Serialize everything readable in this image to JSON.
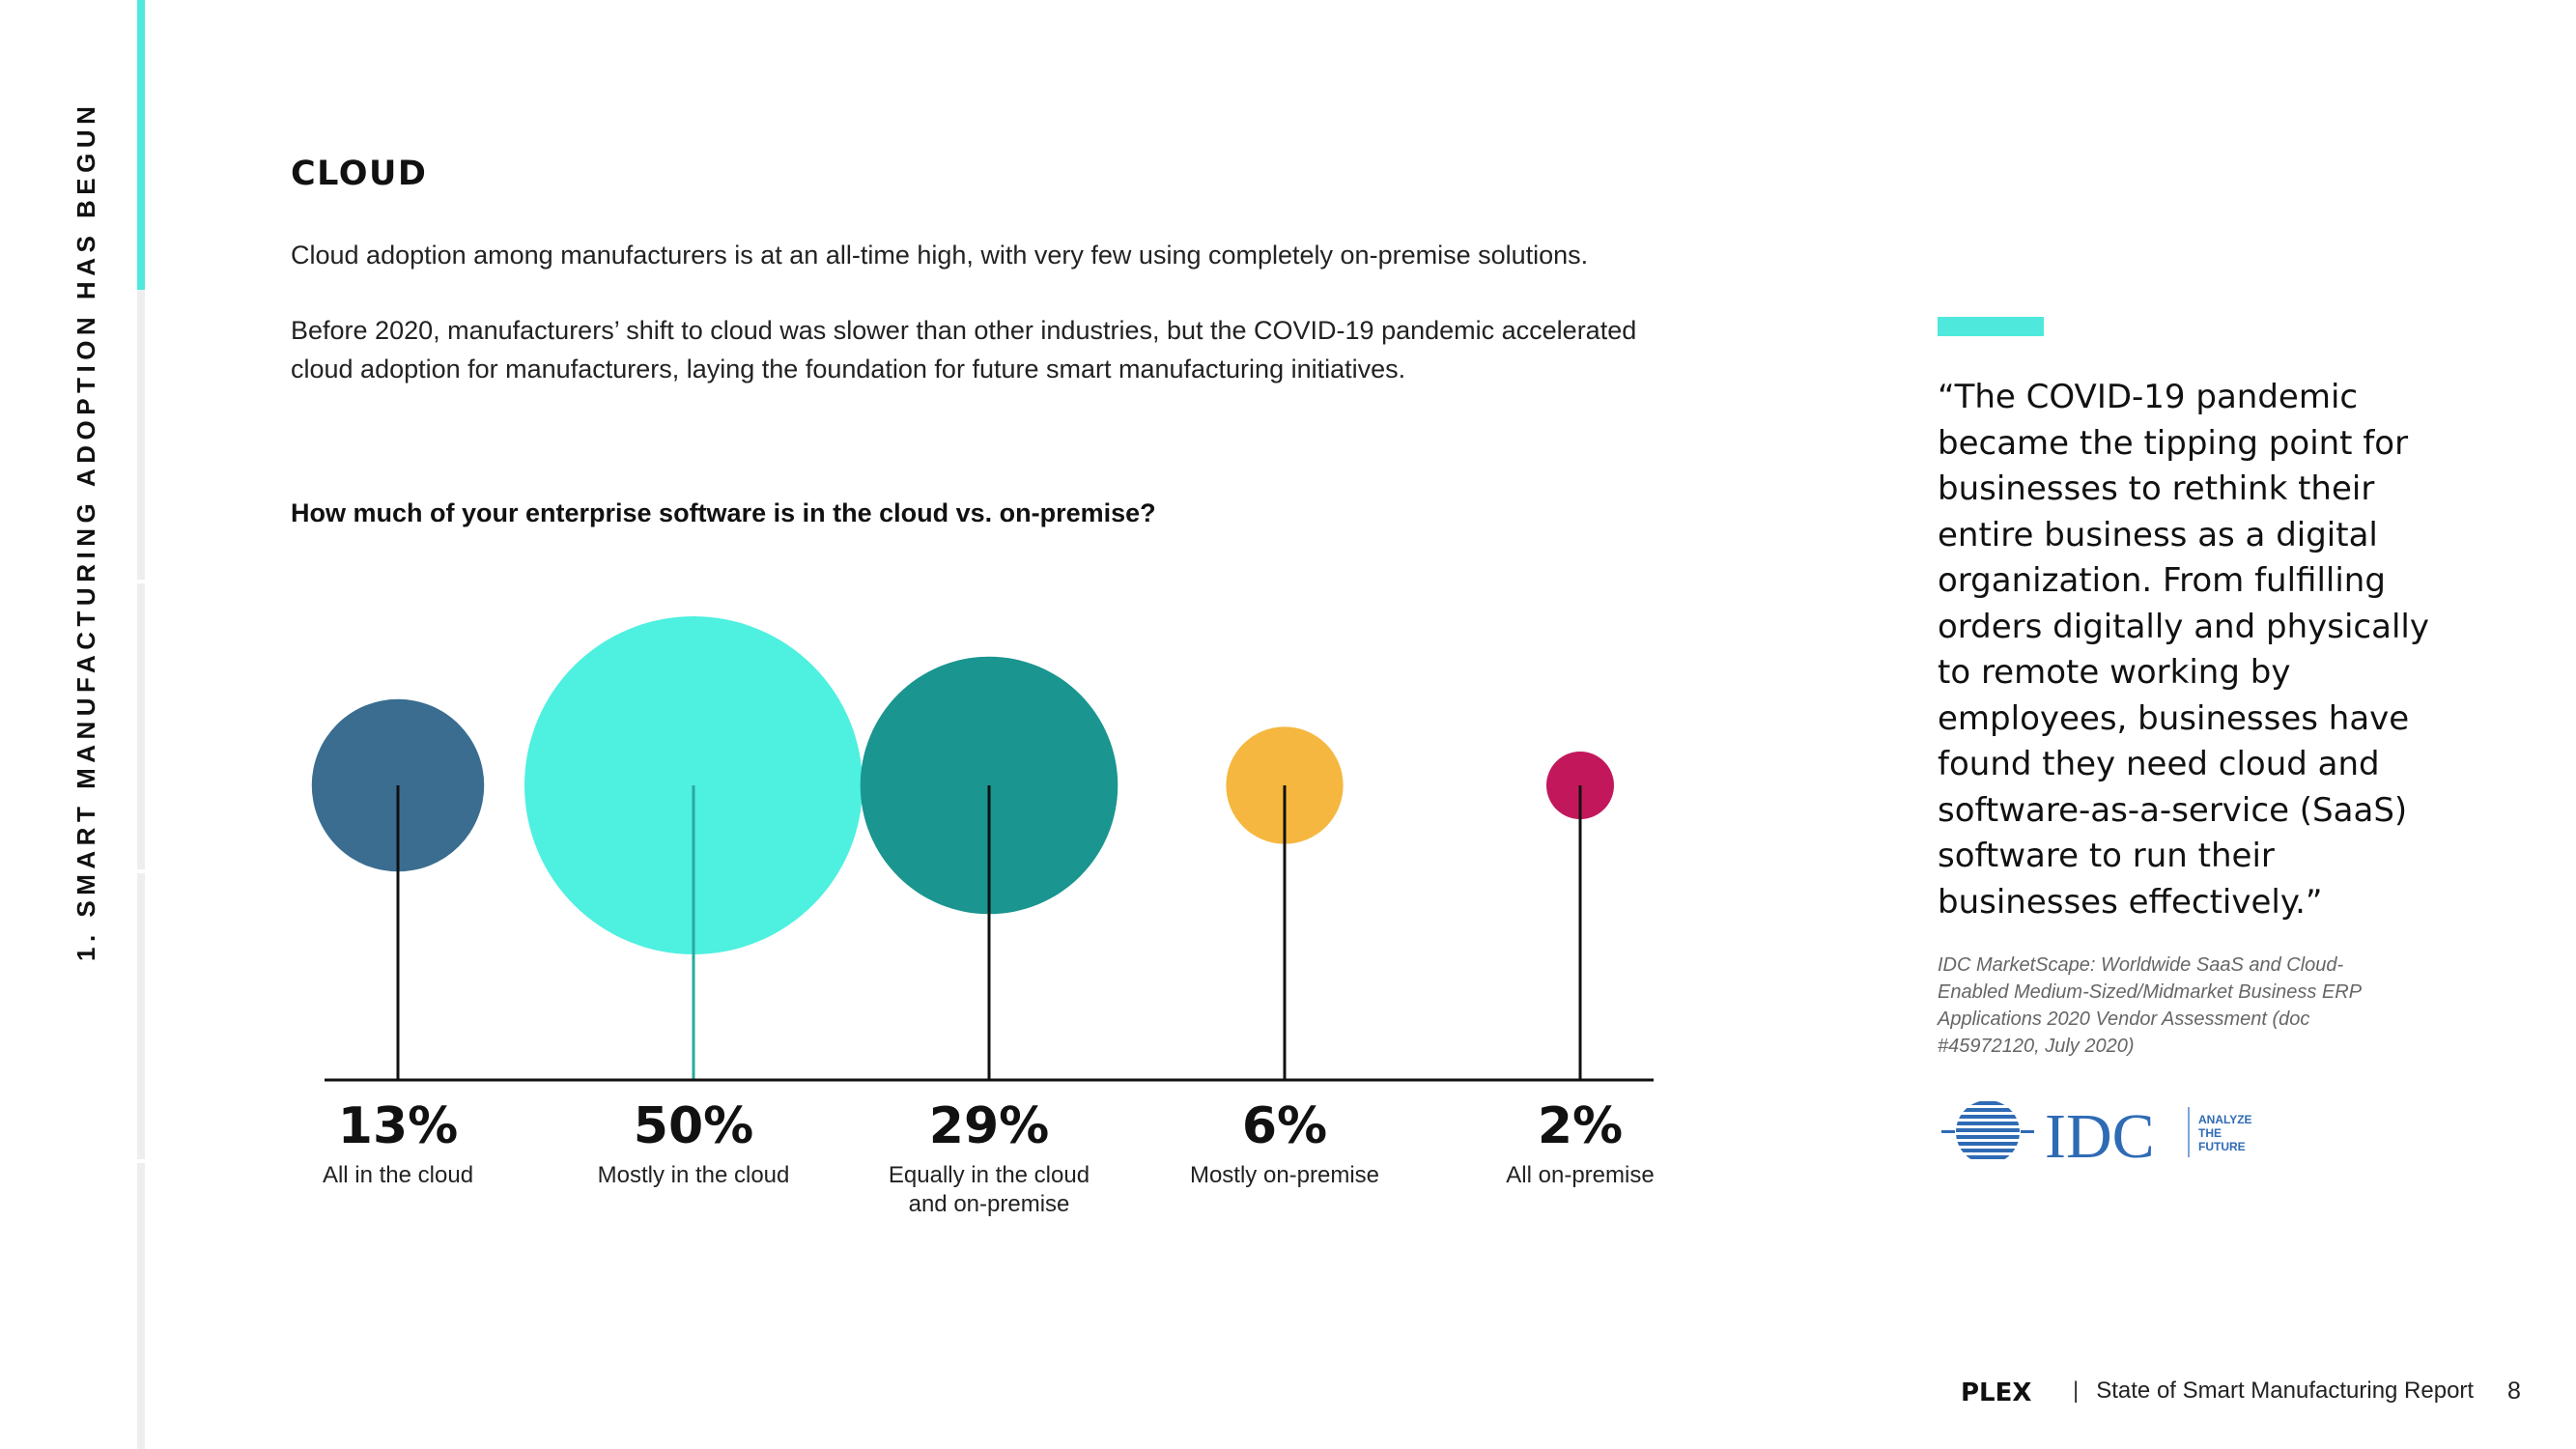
{
  "sidebar": {
    "vertical_title": "1. SMART MANUFACTURING ADOPTION HAS BEGUN"
  },
  "section": {
    "title": "CLOUD",
    "para1": "Cloud adoption among manufacturers is at an all-time high, with very few using completely on-premise solutions.",
    "para2": "Before 2020, manufacturers’ shift to cloud was slower than other industries, but the COVID-19 pandemic accelerated cloud adoption for manufacturers, laying the foundation for future smart manufacturing initiatives.",
    "question": "How much of your enterprise software is in the cloud vs. on-premise?"
  },
  "chart_data": {
    "type": "bubble",
    "title": "How much of your enterprise software is in the cloud vs. on-premise?",
    "categories": [
      "All in the cloud",
      "Mostly in the cloud",
      "Equally in the cloud and on-premise",
      "Mostly on-premise",
      "All on-premise"
    ],
    "category_lines": [
      [
        "All in the cloud"
      ],
      [
        "Mostly in the cloud"
      ],
      [
        "Equally in the cloud",
        "and on-premise"
      ],
      [
        "Mostly on-premise"
      ],
      [
        "All on-premise"
      ]
    ],
    "values": [
      13,
      50,
      29,
      6,
      2
    ],
    "labels": [
      "13%",
      "50%",
      "29%",
      "6%",
      "2%"
    ],
    "unit": "%",
    "colors": [
      "#3a6d90",
      "#4ef0e0",
      "#1a9590",
      "#f5b73f",
      "#c2185b"
    ]
  },
  "quote": {
    "text": "“The COVID-19 pandemic became the tipping point for businesses to rethink their entire business as a digital organization. From fulfilling orders digitally and physically to remote working by employees, businesses have found they need cloud and software-as-a-service (SaaS) software to run their businesses effectively.”",
    "source": "IDC MarketScape: Worldwide SaaS and Cloud-Enabled Medium-Sized/Midmarket Business ERP Applications 2020 Vendor Assessment (doc #45972120, July 2020)",
    "logo_text": "IDC",
    "logo_tagline": [
      "ANALYZE",
      "THE",
      "FUTURE"
    ]
  },
  "footer": {
    "brand": "PLEX",
    "separator": "|",
    "report_title": "State of Smart Manufacturing Report",
    "page_number": "8"
  },
  "colors": {
    "accent": "#4ee9dc",
    "text": "#111111",
    "logo_blue": "#2f6bb5"
  }
}
